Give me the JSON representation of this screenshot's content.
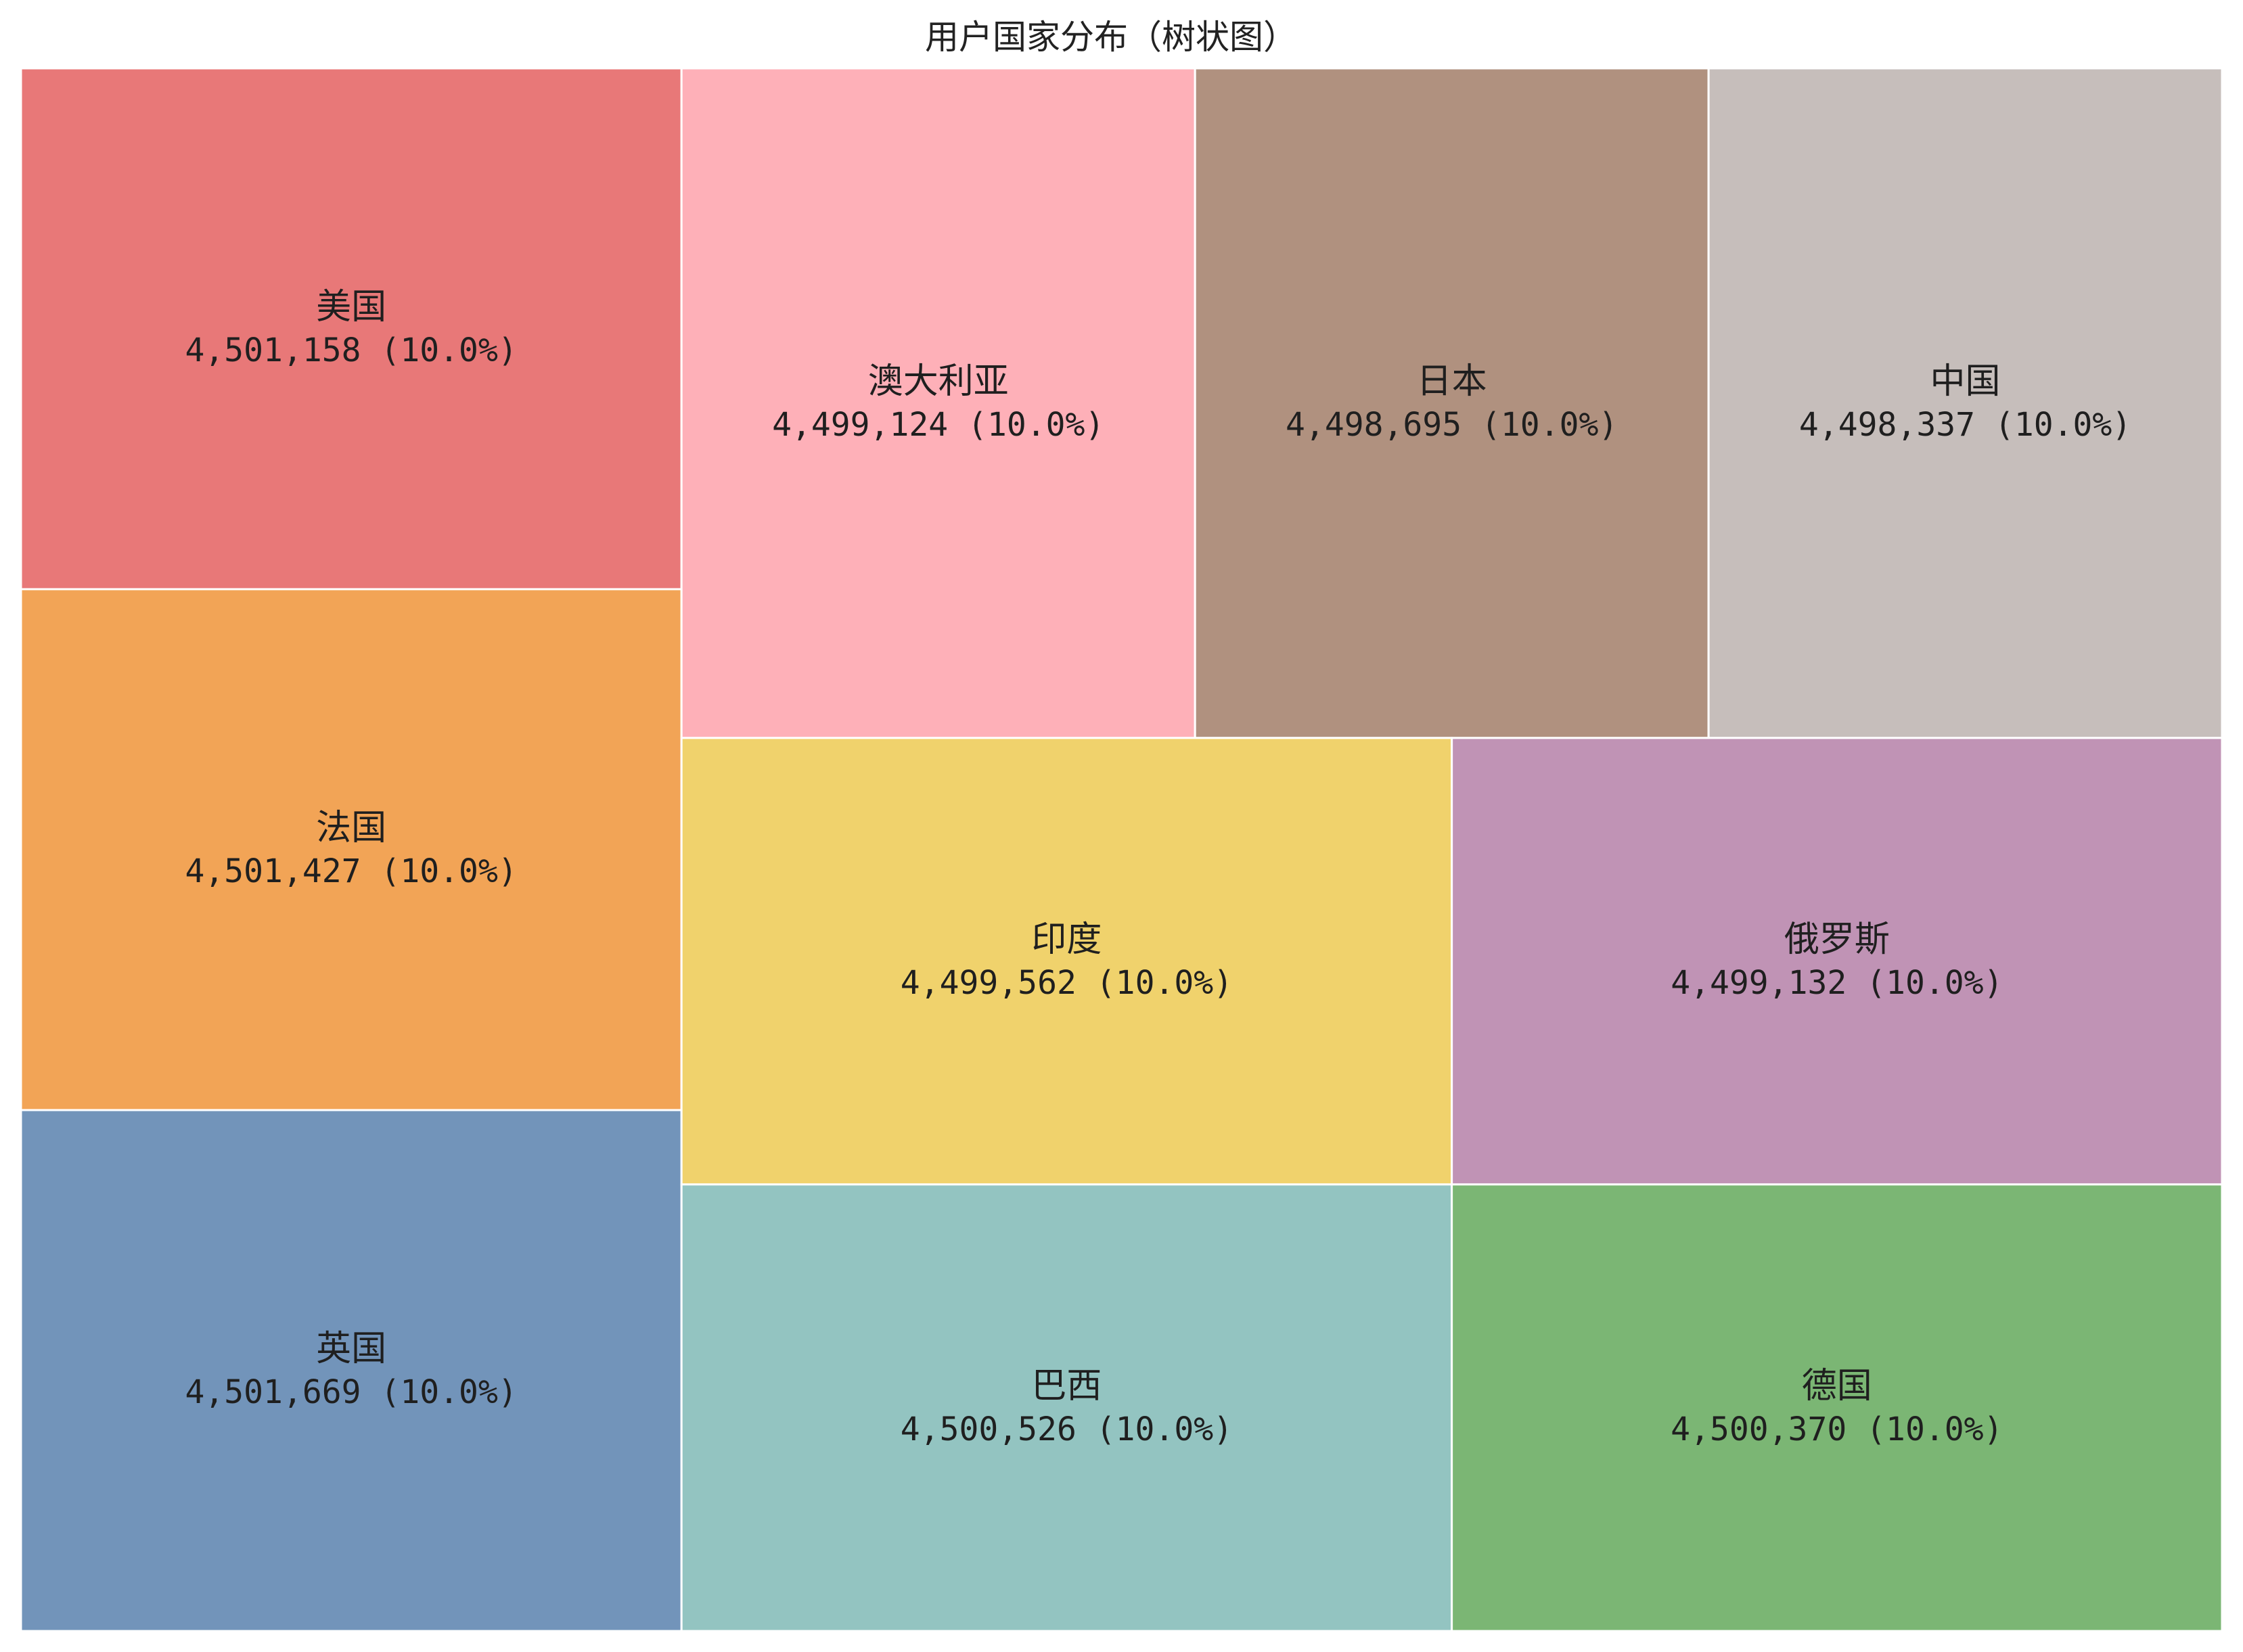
{
  "chart_data": {
    "type": "treemap",
    "title": "用户国家分布（树状图）",
    "items": [
      {
        "name": "美国",
        "value": 4501158,
        "value_text": "4,501,158",
        "pct_text": "(10.0%)",
        "color": "#e87878"
      },
      {
        "name": "法国",
        "value": 4501427,
        "value_text": "4,501,427",
        "pct_text": "(10.0%)",
        "color": "#f2a456"
      },
      {
        "name": "英国",
        "value": 4501669,
        "value_text": "4,501,669",
        "pct_text": "(10.0%)",
        "color": "#7294ba"
      },
      {
        "name": "澳大利亚",
        "value": 4499124,
        "value_text": "4,499,124",
        "pct_text": "(10.0%)",
        "color": "#feb0b8"
      },
      {
        "name": "日本",
        "value": 4498695,
        "value_text": "4,498,695",
        "pct_text": "(10.0%)",
        "color": "#b0917f"
      },
      {
        "name": "中国",
        "value": 4498337,
        "value_text": "4,498,337",
        "pct_text": "(10.0%)",
        "color": "#c6bebb"
      },
      {
        "name": "印度",
        "value": 4499562,
        "value_text": "4,499,562",
        "pct_text": "(10.0%)",
        "color": "#f0d26c"
      },
      {
        "name": "俄罗斯",
        "value": 4499132,
        "value_text": "4,499,132",
        "pct_text": "(10.0%)",
        "color": "#c093b5"
      },
      {
        "name": "巴西",
        "value": 4500526,
        "value_text": "4,500,526",
        "pct_text": "(10.0%)",
        "color": "#93c4c1"
      },
      {
        "name": "德国",
        "value": 4500370,
        "value_text": "4,500,370",
        "pct_text": "(10.0%)",
        "color": "#7bb674"
      }
    ]
  }
}
